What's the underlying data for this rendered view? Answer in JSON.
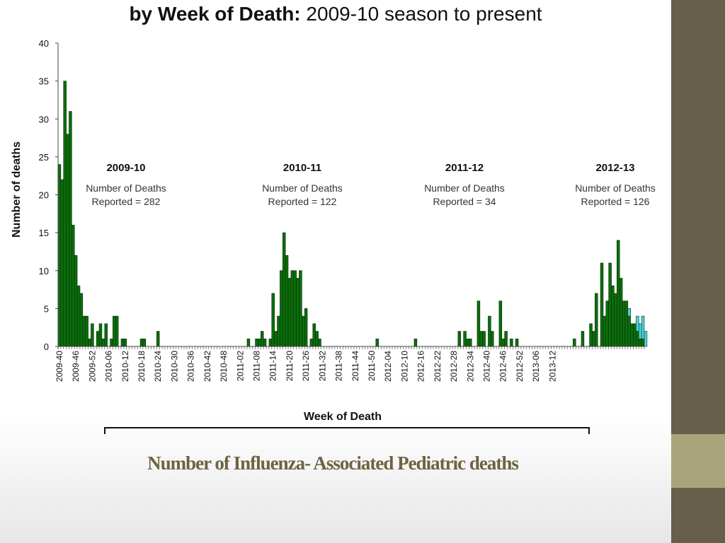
{
  "slide": {
    "caption": "Number of Influenza- Associated Pediatric deaths",
    "colors": {
      "side_bar": "#665f49",
      "side_accent": "#a9a47c",
      "caption": "#6d6340"
    }
  },
  "chart_data": {
    "type": "bar",
    "title_bold": "by Week of Death:",
    "title_rest": "2009-10 season to present",
    "xlabel": "Week of Death",
    "ylabel": "Number of deaths",
    "ylim": [
      0,
      40
    ],
    "yticks": [
      0,
      5,
      10,
      15,
      20,
      25,
      30,
      35,
      40
    ],
    "grid": false,
    "x_tick_labels": [
      "2009-40",
      "2009-46",
      "2009-52",
      "2010-06",
      "2010-12",
      "2010-18",
      "2010-24",
      "2010-30",
      "2010-36",
      "2010-42",
      "2010-48",
      "2011-02",
      "2011-08",
      "2011-14",
      "2011-20",
      "2011-26",
      "2011-32",
      "2011-38",
      "2011-44",
      "2011-50",
      "2012-04",
      "2012-10",
      "2012-16",
      "2012-22",
      "2012-28",
      "2012-34",
      "2012-40",
      "2012-46",
      "2012-52",
      "2013-06",
      "2013-12"
    ],
    "series": [
      {
        "color": "#0b6e0b",
        "values": [
          24,
          22,
          35,
          28,
          31,
          16,
          12,
          8,
          7,
          4,
          4,
          1,
          3,
          0,
          2,
          3,
          1,
          3,
          0,
          1,
          4,
          4,
          0,
          1,
          1,
          0,
          0,
          0,
          0,
          0,
          1,
          1,
          0,
          0,
          0,
          0,
          2,
          0,
          0,
          0,
          0,
          0,
          0,
          0,
          0,
          0,
          0,
          0,
          0,
          0,
          0,
          0,
          0,
          0,
          0,
          0,
          0,
          0,
          0,
          0,
          0,
          0,
          0,
          0,
          0,
          0,
          0,
          0,
          0,
          1,
          0,
          0,
          1,
          1,
          2,
          1,
          0,
          1,
          7,
          2,
          4,
          10,
          15,
          12,
          9,
          10,
          10,
          9,
          10,
          4,
          5,
          0,
          1,
          3,
          2,
          1,
          0,
          0,
          0,
          0,
          0,
          0,
          0,
          0,
          0,
          0,
          0,
          0,
          0,
          0,
          0,
          0,
          0,
          0,
          0,
          0,
          1,
          0,
          0,
          0,
          0,
          0,
          0,
          0,
          0,
          0,
          0,
          0,
          0,
          0,
          1,
          0,
          0,
          0,
          0,
          0,
          0,
          0,
          0,
          0,
          0,
          0,
          0,
          0,
          0,
          0,
          2,
          0,
          2,
          1,
          1,
          0,
          0,
          6,
          2,
          2,
          0,
          4,
          2,
          0,
          0,
          6,
          1,
          2,
          0,
          1,
          0,
          1,
          0,
          0,
          0,
          0,
          0,
          0,
          0,
          0,
          0,
          0,
          0,
          0,
          0,
          0,
          0,
          0,
          0,
          0,
          0,
          0,
          1,
          0,
          0,
          2,
          0,
          0,
          3,
          2,
          7,
          0,
          11,
          4,
          6,
          11,
          8,
          7,
          14,
          9,
          6,
          6,
          4,
          3,
          3,
          2,
          1,
          1
        ]
      },
      {
        "color": "#4dd4e0",
        "values": [
          0,
          0,
          0,
          0,
          0,
          0,
          0,
          0,
          0,
          0,
          0,
          0,
          0,
          0,
          0,
          0,
          0,
          0,
          0,
          0,
          0,
          0,
          0,
          0,
          0,
          0,
          0,
          0,
          0,
          0,
          0,
          0,
          0,
          0,
          0,
          0,
          0,
          0,
          0,
          0,
          0,
          0,
          0,
          0,
          0,
          0,
          0,
          0,
          0,
          0,
          0,
          0,
          0,
          0,
          0,
          0,
          0,
          0,
          0,
          0,
          0,
          0,
          0,
          0,
          0,
          0,
          0,
          0,
          0,
          0,
          0,
          0,
          0,
          0,
          0,
          0,
          0,
          0,
          0,
          0,
          0,
          0,
          0,
          0,
          0,
          0,
          0,
          0,
          0,
          0,
          0,
          0,
          0,
          0,
          0,
          0,
          0,
          0,
          0,
          0,
          0,
          0,
          0,
          0,
          0,
          0,
          0,
          0,
          0,
          0,
          0,
          0,
          0,
          0,
          0,
          0,
          0,
          0,
          0,
          0,
          0,
          0,
          0,
          0,
          0,
          0,
          0,
          0,
          0,
          0,
          0,
          0,
          0,
          0,
          0,
          0,
          0,
          0,
          0,
          0,
          0,
          0,
          0,
          0,
          0,
          0,
          0,
          0,
          0,
          0,
          0,
          0,
          0,
          0,
          0,
          0,
          0,
          0,
          0,
          0,
          0,
          0,
          0,
          0,
          0,
          0,
          0,
          0,
          0,
          0,
          0,
          0,
          0,
          0,
          0,
          0,
          0,
          0,
          0,
          0,
          0,
          0,
          0,
          0,
          0,
          0,
          0,
          0,
          0,
          0,
          0,
          0,
          0,
          0,
          0,
          0,
          0,
          0,
          0,
          0,
          0,
          0,
          0,
          0,
          0,
          0,
          0,
          0,
          1,
          0,
          0,
          2,
          2,
          3,
          2,
          0
        ]
      }
    ],
    "annotations": [
      {
        "season": "2009-10",
        "line1": "Number of Deaths",
        "line2": "Reported = 282"
      },
      {
        "season": "2010-11",
        "line1": "Number of Deaths",
        "line2": "Reported = 122"
      },
      {
        "season": "2011-12",
        "line1": "Number of Deaths",
        "line2": "Reported = 34"
      },
      {
        "season": "2012-13",
        "line1": "Number of Deaths",
        "line2": "Reported = 126"
      }
    ]
  }
}
